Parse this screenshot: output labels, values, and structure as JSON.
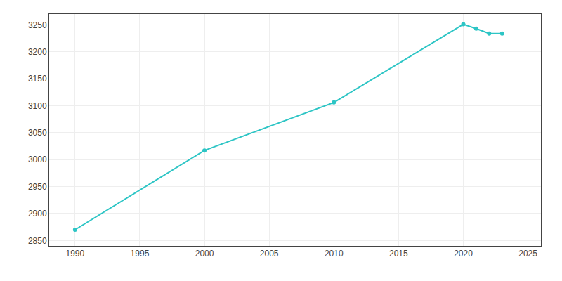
{
  "chart_data": {
    "type": "line",
    "x": [
      1990,
      2000,
      2010,
      2020,
      2021,
      2022,
      2023
    ],
    "values": [
      2870,
      3017,
      3106,
      3251,
      3243,
      3234,
      3234
    ],
    "color": "#2dc5c5",
    "marker": "circle",
    "xlim": [
      1988,
      2026
    ],
    "ylim": [
      2840,
      3270
    ],
    "xticks": [
      1990,
      1995,
      2000,
      2005,
      2010,
      2015,
      2020,
      2025
    ],
    "yticks": [
      2850,
      2900,
      2950,
      3000,
      3050,
      3100,
      3150,
      3200,
      3250
    ],
    "grid": true
  }
}
